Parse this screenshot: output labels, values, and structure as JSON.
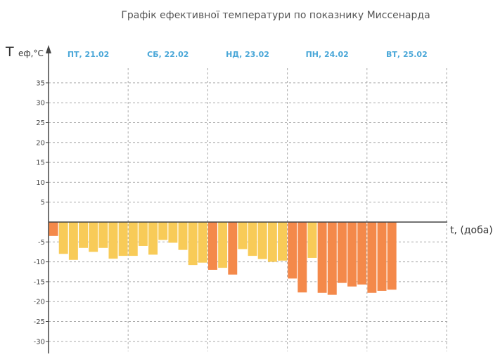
{
  "colors": {
    "warm_bar": "#f8cb58",
    "cold_bar": "#f4894a",
    "day_label": "#4aa7d8",
    "axis": "#444444",
    "grid": "#aaaaaa"
  },
  "chart_data": {
    "type": "bar",
    "title": "Графік ефективної температури по показнику Миссенарда",
    "ylabel_main": "T",
    "ylabel_sub": "еф,°C",
    "xlabel": "t, (доба)",
    "ylim": [
      -32,
      38
    ],
    "y_ticks": [
      35,
      30,
      25,
      20,
      15,
      10,
      5,
      -5,
      -10,
      -15,
      -20,
      -25,
      -30
    ],
    "y_tick_labels": [
      "35",
      "30",
      "25",
      "20",
      "15",
      "10",
      "5",
      "-5",
      "-10",
      "-15",
      "-20",
      "-25",
      "-30"
    ],
    "grid": true,
    "days": [
      "ПТ, 21.02",
      "СБ, 22.02",
      "НД, 23.02",
      "ПН, 24.02",
      "ВТ, 25.02"
    ],
    "bars_per_day": 8,
    "values": [
      -3.5,
      -8.0,
      -9.5,
      -6.5,
      -7.5,
      -6.5,
      -9.2,
      -8.5,
      -8.5,
      -6.0,
      -8.2,
      -4.5,
      -5.2,
      -7.0,
      -10.8,
      -10.2,
      -12.0,
      -11.5,
      -13.2,
      -6.8,
      -8.5,
      -9.3,
      -10.0,
      -9.7,
      -14.2,
      -17.7,
      -9.0,
      -17.8,
      -18.3,
      -15.3,
      -16.2,
      -15.7,
      -17.8,
      -17.3,
      -17.0
    ],
    "categories": [
      "cold",
      "warm",
      "warm",
      "warm",
      "warm",
      "warm",
      "warm",
      "warm",
      "warm",
      "warm",
      "warm",
      "warm",
      "warm",
      "warm",
      "warm",
      "warm",
      "cold",
      "warm",
      "cold",
      "warm",
      "warm",
      "warm",
      "warm",
      "warm",
      "cold",
      "cold",
      "warm",
      "cold",
      "cold",
      "cold",
      "cold",
      "cold",
      "cold",
      "cold",
      "cold"
    ]
  }
}
